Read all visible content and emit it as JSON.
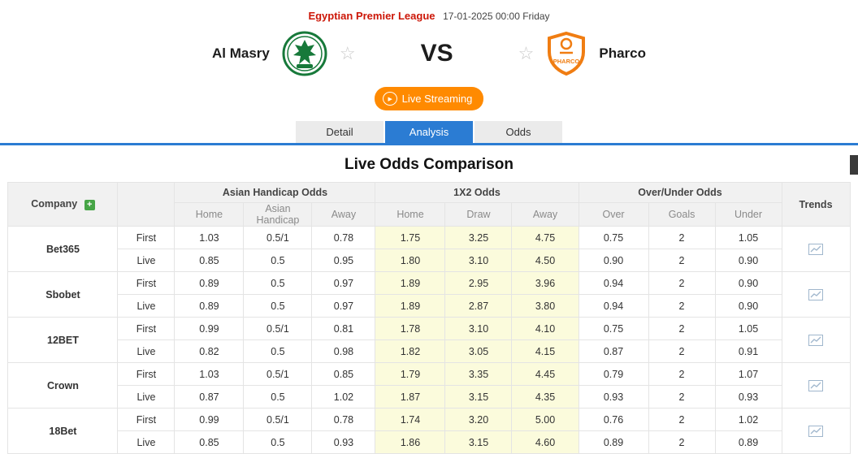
{
  "colors": {
    "league_red": "#cc1607",
    "accent_blue": "#2b7cd3",
    "live_orange": "#ff8a00",
    "highlight_yellow": "#fbfbdc",
    "home_logo_green": "#17793a",
    "away_logo_orange": "#f07d12",
    "plus_green": "#46a546"
  },
  "header": {
    "league": "Egyptian Premier League",
    "datetime": "17-01-2025 00:00 Friday",
    "home_team": "Al Masry",
    "vs": "VS",
    "away_team": "Pharco",
    "live_streaming": "Live Streaming"
  },
  "tabs": [
    {
      "label": "Detail",
      "active": false
    },
    {
      "label": "Analysis",
      "active": true
    },
    {
      "label": "Odds",
      "active": false
    }
  ],
  "section_title": "Live Odds Comparison",
  "table": {
    "company_header": "Company",
    "trends_header": "Trends",
    "groups": [
      {
        "name": "Asian Handicap Odds",
        "cols": [
          "Home",
          "Asian Handicap",
          "Away"
        ]
      },
      {
        "name": "1X2 Odds",
        "cols": [
          "Home",
          "Draw",
          "Away"
        ]
      },
      {
        "name": "Over/Under Odds",
        "cols": [
          "Over",
          "Goals",
          "Under"
        ]
      }
    ],
    "rows": [
      {
        "company": "Bet365",
        "periods": [
          {
            "label": "First",
            "ah": [
              "1.03",
              "0.5/1",
              "0.78"
            ],
            "x12": [
              "1.75",
              "3.25",
              "4.75"
            ],
            "ou": [
              "0.75",
              "2",
              "1.05"
            ]
          },
          {
            "label": "Live",
            "ah": [
              "0.85",
              "0.5",
              "0.95"
            ],
            "x12": [
              "1.80",
              "3.10",
              "4.50"
            ],
            "ou": [
              "0.90",
              "2",
              "0.90"
            ]
          }
        ]
      },
      {
        "company": "Sbobet",
        "periods": [
          {
            "label": "First",
            "ah": [
              "0.89",
              "0.5",
              "0.97"
            ],
            "x12": [
              "1.89",
              "2.95",
              "3.96"
            ],
            "ou": [
              "0.94",
              "2",
              "0.90"
            ]
          },
          {
            "label": "Live",
            "ah": [
              "0.89",
              "0.5",
              "0.97"
            ],
            "x12": [
              "1.89",
              "2.87",
              "3.80"
            ],
            "ou": [
              "0.94",
              "2",
              "0.90"
            ]
          }
        ]
      },
      {
        "company": "12BET",
        "periods": [
          {
            "label": "First",
            "ah": [
              "0.99",
              "0.5/1",
              "0.81"
            ],
            "x12": [
              "1.78",
              "3.10",
              "4.10"
            ],
            "ou": [
              "0.75",
              "2",
              "1.05"
            ]
          },
          {
            "label": "Live",
            "ah": [
              "0.82",
              "0.5",
              "0.98"
            ],
            "x12": [
              "1.82",
              "3.05",
              "4.15"
            ],
            "ou": [
              "0.87",
              "2",
              "0.91"
            ]
          }
        ]
      },
      {
        "company": "Crown",
        "periods": [
          {
            "label": "First",
            "ah": [
              "1.03",
              "0.5/1",
              "0.85"
            ],
            "x12": [
              "1.79",
              "3.35",
              "4.45"
            ],
            "ou": [
              "0.79",
              "2",
              "1.07"
            ]
          },
          {
            "label": "Live",
            "ah": [
              "0.87",
              "0.5",
              "1.02"
            ],
            "x12": [
              "1.87",
              "3.15",
              "4.35"
            ],
            "ou": [
              "0.93",
              "2",
              "0.93"
            ]
          }
        ]
      },
      {
        "company": "18Bet",
        "periods": [
          {
            "label": "First",
            "ah": [
              "0.99",
              "0.5/1",
              "0.78"
            ],
            "x12": [
              "1.74",
              "3.20",
              "5.00"
            ],
            "ou": [
              "0.76",
              "2",
              "1.02"
            ]
          },
          {
            "label": "Live",
            "ah": [
              "0.85",
              "0.5",
              "0.93"
            ],
            "x12": [
              "1.86",
              "3.15",
              "4.60"
            ],
            "ou": [
              "0.89",
              "2",
              "0.89"
            ]
          }
        ]
      }
    ]
  }
}
